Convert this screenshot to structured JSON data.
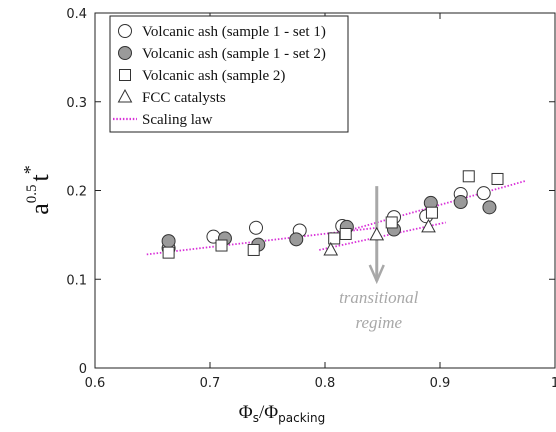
{
  "chart_data": {
    "type": "scatter",
    "xlabel": {
      "main": "Φ",
      "sub1": "s",
      "slash": "/Φ",
      "sub2": "packing"
    },
    "ylabel": {
      "base": "a",
      "exp": "0.5",
      "t": "t",
      "star": "*"
    },
    "xlim": [
      0.6,
      1.0
    ],
    "ylim": [
      0,
      0.4
    ],
    "xticks": [
      0.6,
      0.7,
      0.8,
      0.9,
      1.0
    ],
    "xtick_labels": [
      "0.6",
      "0.7",
      "0.8",
      "0.9",
      "1"
    ],
    "yticks": [
      0,
      0.1,
      0.2,
      0.3,
      0.4
    ],
    "ytick_labels": [
      "0",
      "0.1",
      "0.2",
      "0.3",
      "0.4"
    ],
    "grid": false,
    "legend_position": "top-left",
    "series": [
      {
        "name": "Volcanic ash (sample 1 - set 1)",
        "marker": "circle-open",
        "points": [
          [
            0.664,
            0.135
          ],
          [
            0.703,
            0.148
          ],
          [
            0.74,
            0.158
          ],
          [
            0.778,
            0.155
          ],
          [
            0.815,
            0.16
          ],
          [
            0.86,
            0.17
          ],
          [
            0.888,
            0.171
          ],
          [
            0.918,
            0.196
          ],
          [
            0.938,
            0.197
          ]
        ]
      },
      {
        "name": "Volcanic ash (sample 1 - set 2)",
        "marker": "circle-filled",
        "points": [
          [
            0.664,
            0.143
          ],
          [
            0.713,
            0.146
          ],
          [
            0.742,
            0.139
          ],
          [
            0.775,
            0.145
          ],
          [
            0.819,
            0.159
          ],
          [
            0.86,
            0.156
          ],
          [
            0.892,
            0.186
          ],
          [
            0.918,
            0.187
          ],
          [
            0.943,
            0.181
          ]
        ]
      },
      {
        "name": "Volcanic ash (sample 2)",
        "marker": "square-open",
        "points": [
          [
            0.664,
            0.13
          ],
          [
            0.71,
            0.138
          ],
          [
            0.738,
            0.133
          ],
          [
            0.808,
            0.146
          ],
          [
            0.818,
            0.151
          ],
          [
            0.858,
            0.164
          ],
          [
            0.893,
            0.175
          ],
          [
            0.925,
            0.216
          ],
          [
            0.95,
            0.213
          ]
        ]
      },
      {
        "name": "FCC catalysts",
        "marker": "triangle-open",
        "points": [
          [
            0.805,
            0.133
          ],
          [
            0.845,
            0.15
          ],
          [
            0.89,
            0.159
          ]
        ]
      },
      {
        "name": "Scaling law",
        "marker": "dotted-line",
        "segments": [
          [
            [
              0.645,
              0.128
            ],
            [
              0.845,
              0.158
            ]
          ],
          [
            [
              0.795,
              0.133
            ],
            [
              0.905,
              0.164
            ]
          ],
          [
            [
              0.815,
              0.153
            ],
            [
              0.975,
              0.211
            ]
          ]
        ]
      }
    ],
    "annotation": {
      "lines": [
        "transitional",
        "regime"
      ],
      "arrow_from": [
        0.845,
        0.205
      ],
      "arrow_to": [
        0.845,
        0.098
      ]
    },
    "colors": {
      "scaling_law": "#d930d9",
      "filled_marker": "#9a9a9a",
      "annotation": "#a8a8a8"
    }
  }
}
